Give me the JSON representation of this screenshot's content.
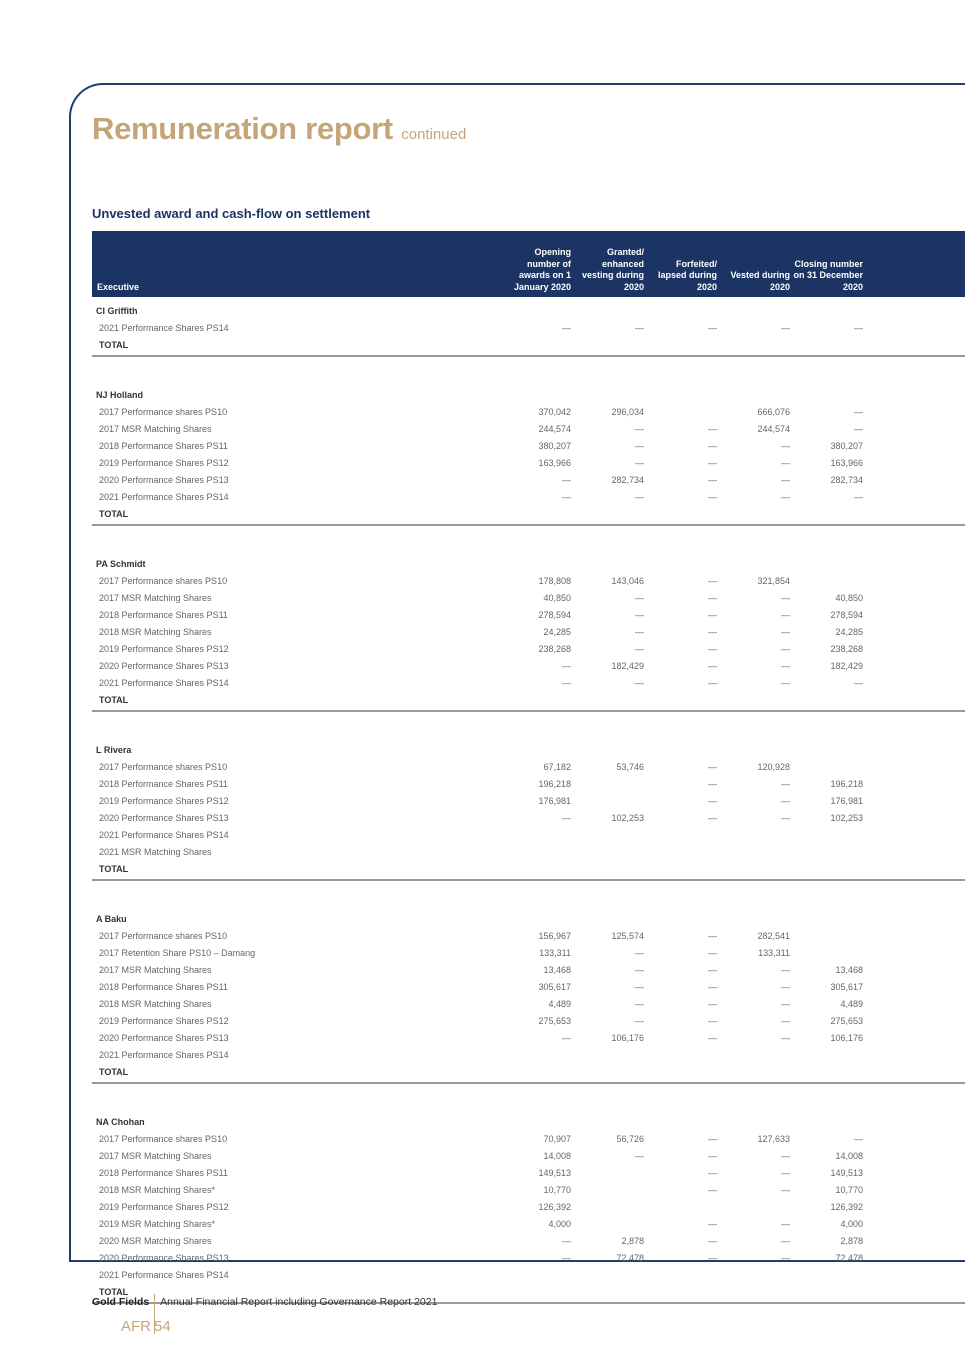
{
  "header": {
    "title": "Remuneration report",
    "subtitle": "continued"
  },
  "section_title": "Unvested award and cash-flow on settlement",
  "table": {
    "columns": [
      "Executive",
      "Opening number of awards on 1 January 2020",
      "Granted/ enhanced vesting during 2020",
      "Forfeited/ lapsed during 2020",
      "Vested during 2020",
      "Closing number on 31 December 2020"
    ],
    "total_label": "TOTAL",
    "groups": [
      {
        "name": "CI Griffith",
        "rows": [
          {
            "label": "2021 Performance Shares PS14",
            "values": [
              "—",
              "—",
              "—",
              "—",
              "—"
            ]
          }
        ]
      },
      {
        "name": "NJ Holland",
        "rows": [
          {
            "label": "2017 Performance shares PS10",
            "values": [
              "370,042",
              "296,034",
              "",
              "666,076",
              "—"
            ]
          },
          {
            "label": "2017 MSR Matching Shares",
            "values": [
              "244,574",
              "—",
              "—",
              "244,574",
              "—"
            ]
          },
          {
            "label": "2018 Performance Shares PS11",
            "values": [
              "380,207",
              "—",
              "—",
              "—",
              "380,207"
            ]
          },
          {
            "label": "2019 Performance Shares PS12",
            "values": [
              "163,966",
              "—",
              "—",
              "—",
              "163,966"
            ]
          },
          {
            "label": "2020 Performance Shares PS13",
            "values": [
              "—",
              "282,734",
              "—",
              "—",
              "282,734"
            ]
          },
          {
            "label": "2021 Performance Shares PS14",
            "values": [
              "—",
              "—",
              "—",
              "—",
              "—"
            ]
          }
        ]
      },
      {
        "name": "PA Schmidt",
        "rows": [
          {
            "label": "2017 Performance shares PS10",
            "values": [
              "178,808",
              "143,046",
              "—",
              "321,854",
              ""
            ]
          },
          {
            "label": "2017 MSR Matching Shares",
            "values": [
              "40,850",
              "—",
              "—",
              "—",
              "40,850"
            ]
          },
          {
            "label": "2018 Performance Shares PS11",
            "values": [
              "278,594",
              "—",
              "—",
              "—",
              "278,594"
            ]
          },
          {
            "label": "2018 MSR Matching Shares",
            "values": [
              "24,285",
              "—",
              "—",
              "—",
              "24,285"
            ]
          },
          {
            "label": "2019 Performance Shares PS12",
            "values": [
              "238,268",
              "—",
              "—",
              "—",
              "238,268"
            ]
          },
          {
            "label": "2020 Performance Shares PS13",
            "values": [
              "—",
              "182,429",
              "—",
              "—",
              "182,429"
            ]
          },
          {
            "label": "2021 Performance Shares PS14",
            "values": [
              "—",
              "—",
              "—",
              "—",
              "—"
            ]
          }
        ]
      },
      {
        "name": "L Rivera",
        "rows": [
          {
            "label": "2017 Performance shares PS10",
            "values": [
              "67,182",
              "53,746",
              "—",
              "120,928",
              ""
            ]
          },
          {
            "label": "2018 Performance Shares PS11",
            "values": [
              "196,218",
              "",
              "—",
              "—",
              "196,218"
            ]
          },
          {
            "label": "2019 Performance Shares PS12",
            "values": [
              "176,981",
              "",
              "—",
              "—",
              "176,981"
            ]
          },
          {
            "label": "2020 Performance Shares PS13",
            "values": [
              "—",
              "102,253",
              "—",
              "—",
              "102,253"
            ]
          },
          {
            "label": "2021 Performance Shares PS14",
            "values": [
              "",
              "",
              "",
              "",
              ""
            ]
          },
          {
            "label": "2021 MSR Matching Shares",
            "values": [
              "",
              "",
              "",
              "",
              ""
            ]
          }
        ]
      },
      {
        "name": "A Baku",
        "rows": [
          {
            "label": "2017 Performance shares PS10",
            "values": [
              "156,967",
              "125,574",
              "—",
              "282,541",
              ""
            ]
          },
          {
            "label": "2017 Retention Share PS10 – Damang",
            "values": [
              "133,311",
              "—",
              "—",
              "133,311",
              ""
            ]
          },
          {
            "label": "2017 MSR Matching Shares",
            "values": [
              "13,468",
              "—",
              "—",
              "—",
              "13,468"
            ]
          },
          {
            "label": "2018 Performance Shares PS11",
            "values": [
              "305,617",
              "—",
              "—",
              "—",
              "305,617"
            ]
          },
          {
            "label": "2018 MSR Matching Shares",
            "values": [
              "4,489",
              "—",
              "—",
              "—",
              "4,489"
            ]
          },
          {
            "label": "2019 Performance Shares PS12",
            "values": [
              "275,653",
              "—",
              "—",
              "—",
              "275,653"
            ]
          },
          {
            "label": "2020 Performance Shares PS13",
            "values": [
              "—",
              "106,176",
              "—",
              "—",
              "106,176"
            ]
          },
          {
            "label": "2021 Performance Shares PS14",
            "values": [
              "",
              "",
              "",
              "",
              ""
            ]
          }
        ]
      },
      {
        "name": "NA Chohan",
        "rows": [
          {
            "label": "2017 Performance shares PS10",
            "values": [
              "70,907",
              "56,726",
              "—",
              "127,633",
              "—"
            ]
          },
          {
            "label": "2017 MSR Matching Shares",
            "values": [
              "14,008",
              "—",
              "—",
              "—",
              "14,008"
            ]
          },
          {
            "label": "2018 Performance Shares PS11",
            "values": [
              "149,513",
              "",
              "—",
              "—",
              "149,513"
            ]
          },
          {
            "label": "2018 MSR Matching Shares*",
            "values": [
              "10,770",
              "",
              "—",
              "—",
              "10,770"
            ]
          },
          {
            "label": "2019 Performance Shares PS12",
            "values": [
              "126,392",
              "",
              "",
              "",
              "126,392"
            ]
          },
          {
            "label": "2019 MSR Matching Shares*",
            "values": [
              "4,000",
              "",
              "—",
              "—",
              "4,000"
            ]
          },
          {
            "label": "2020 MSR Matching Shares",
            "values": [
              "—",
              "2,878",
              "—",
              "—",
              "2,878"
            ]
          },
          {
            "label": "2020 Performance Shares PS13",
            "values": [
              "—",
              "72,478",
              "—",
              "—",
              "72,478"
            ]
          },
          {
            "label": "2021 Performance Shares PS14",
            "values": [
              "",
              "",
              "",
              "",
              ""
            ]
          }
        ]
      }
    ]
  },
  "footer": {
    "company": "Gold Fields",
    "report": "Annual Financial Report including Governance Report 2021",
    "section": "AFR",
    "page": "54"
  },
  "colors": {
    "navy": "#1b3464",
    "gold": "#c4a57a"
  }
}
